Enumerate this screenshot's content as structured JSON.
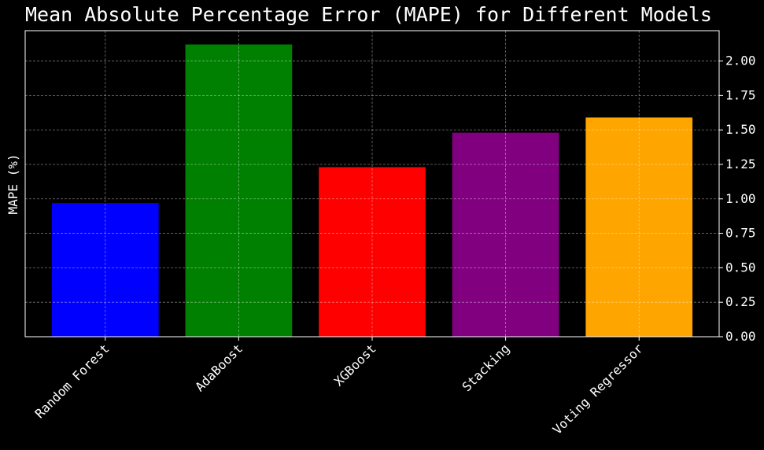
{
  "chart_data": {
    "type": "bar",
    "title": "Mean Absolute Percentage Error (MAPE) for Different Models",
    "xlabel": "",
    "ylabel": "MAPE (%)",
    "categories": [
      "Random Forest",
      "AdaBoost",
      "XGBoost",
      "Stacking",
      "Voting Regressor"
    ],
    "values": [
      0.97,
      2.12,
      1.23,
      1.48,
      1.59
    ],
    "colors": [
      "#0000ff",
      "#008000",
      "#ff0000",
      "#800080",
      "#ffa500"
    ],
    "ylim": [
      0,
      2.22
    ],
    "yticks": [
      0.0,
      0.25,
      0.5,
      0.75,
      1.0,
      1.25,
      1.5,
      1.75,
      2.0
    ],
    "ytick_labels": [
      "0.00",
      "0.25",
      "0.50",
      "0.75",
      "1.00",
      "1.25",
      "1.50",
      "1.75",
      "2.00"
    ],
    "y_axis_side": "right",
    "grid": true,
    "background": "#000000"
  }
}
